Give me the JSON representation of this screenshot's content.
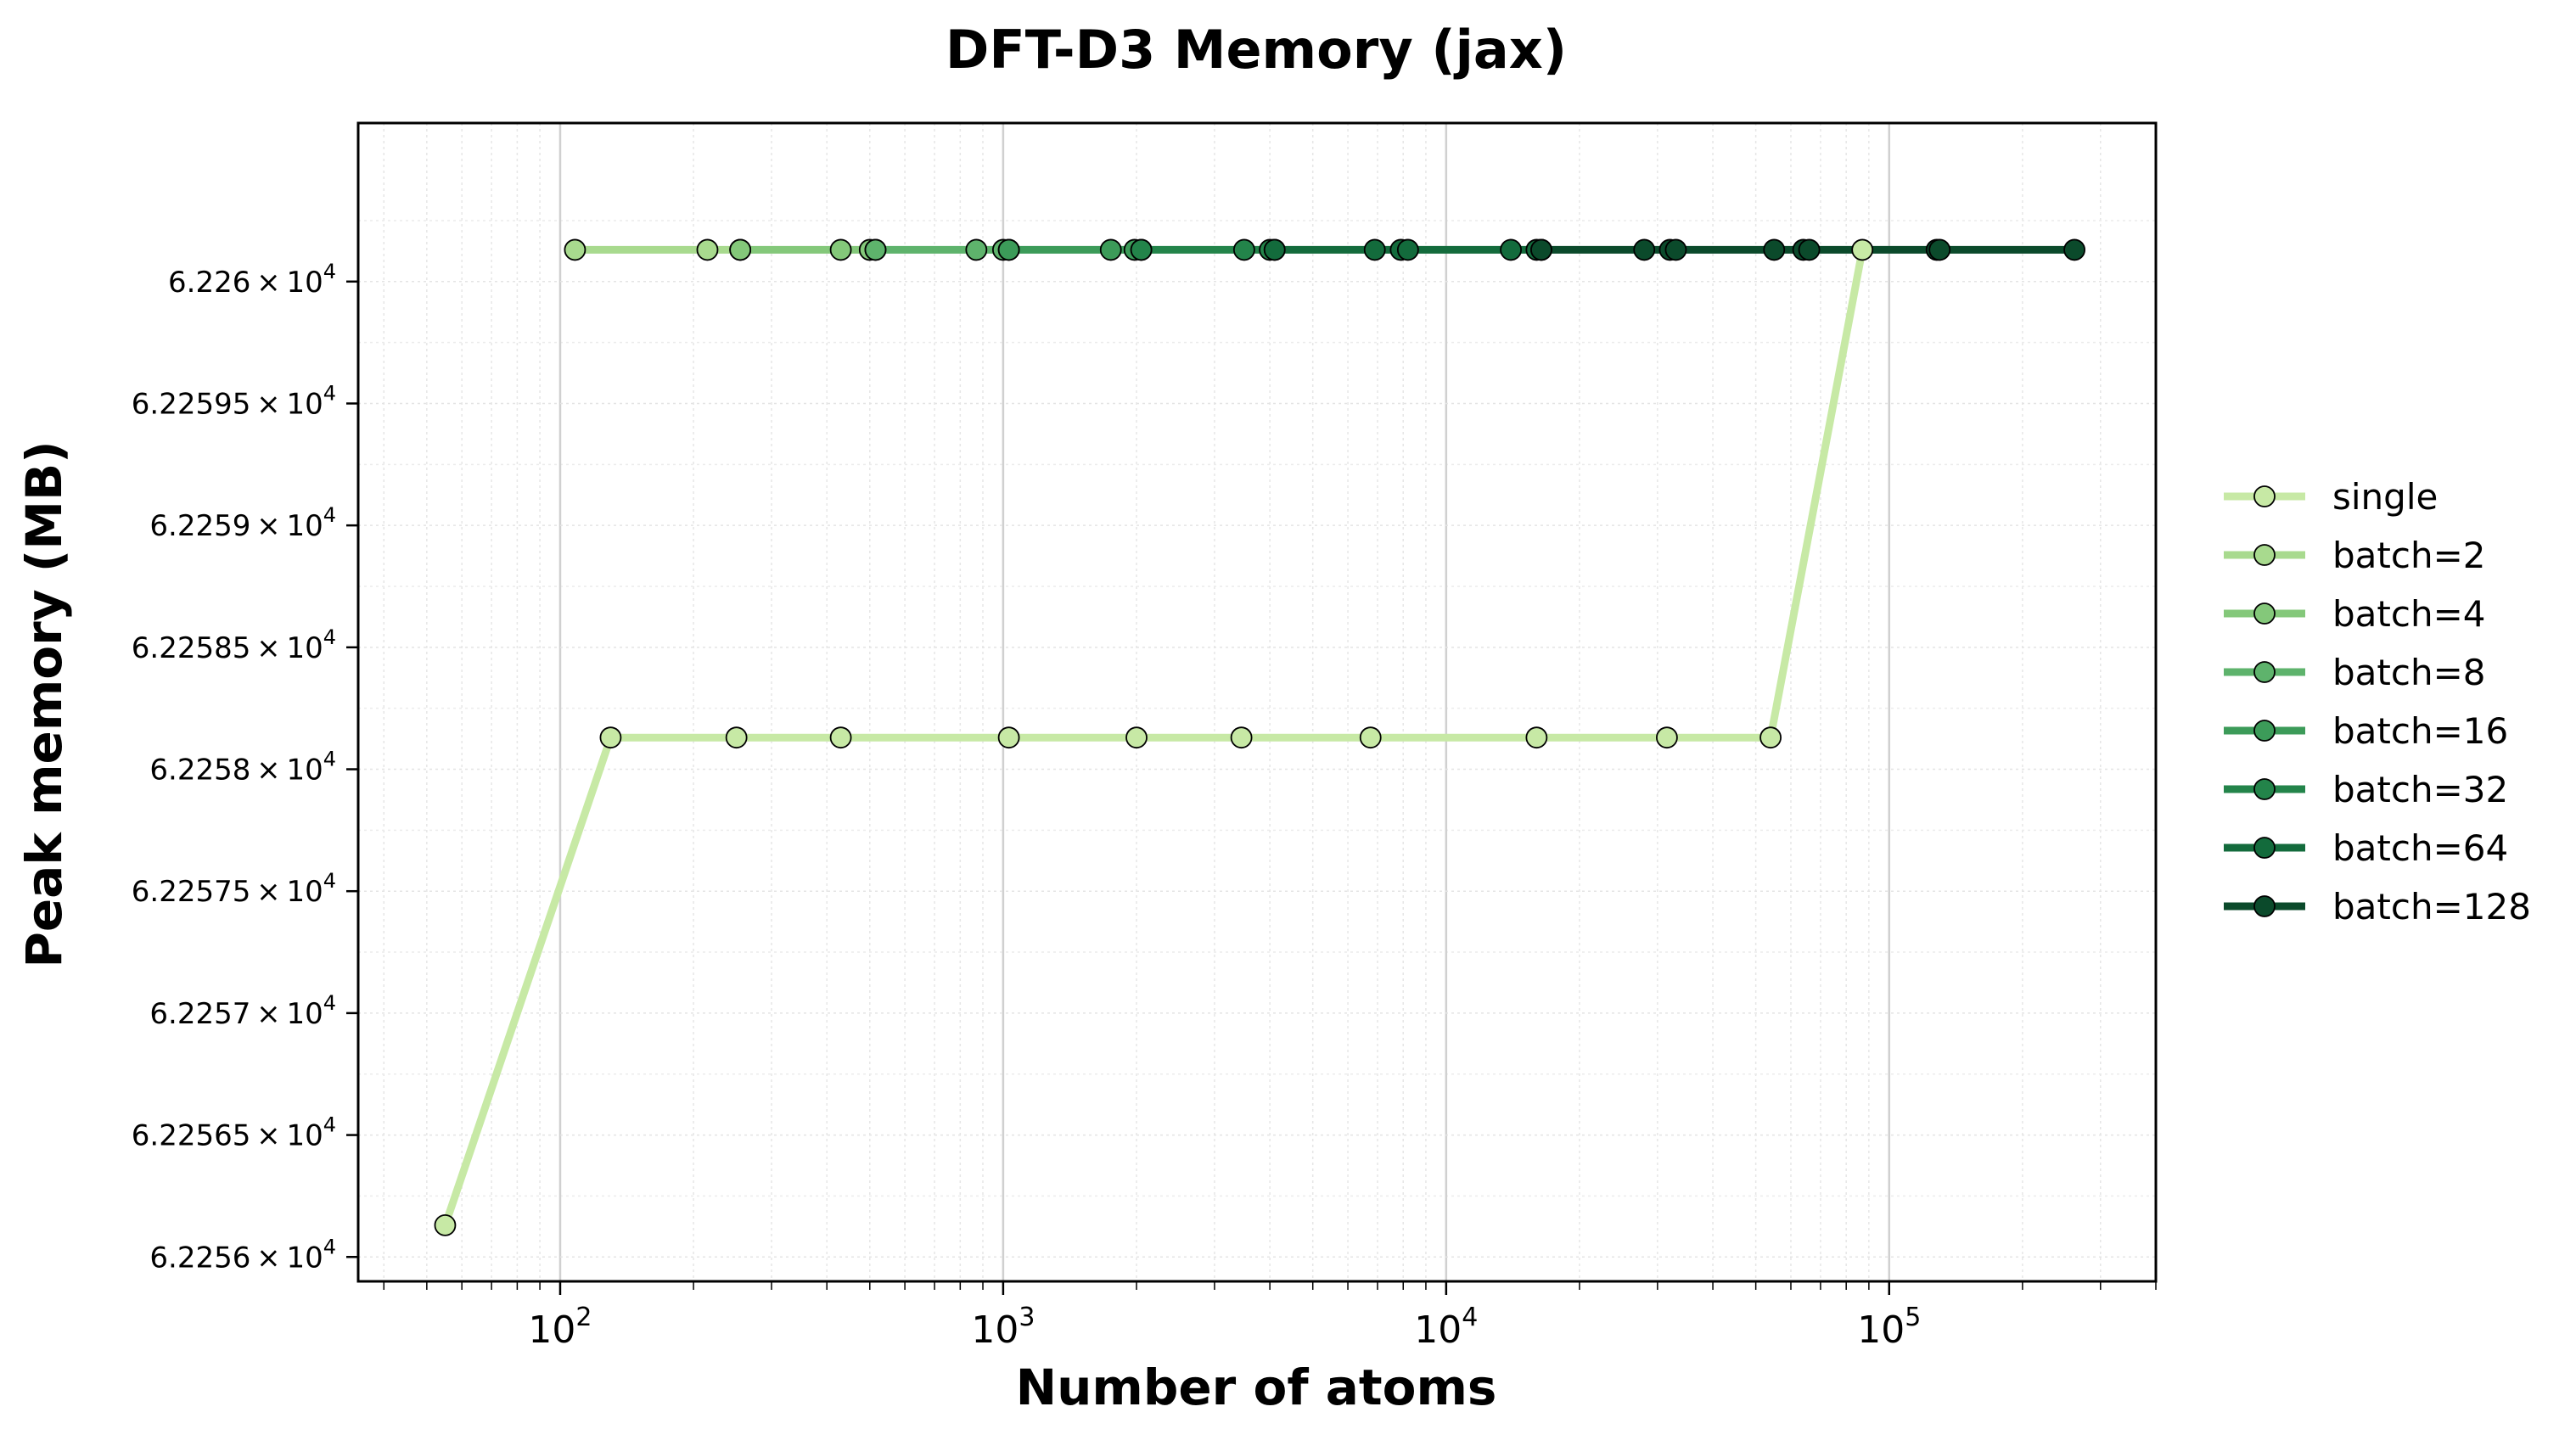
{
  "chart_data": {
    "type": "line",
    "title": "DFT-D3 Memory (jax)",
    "xlabel": "Number of atoms",
    "ylabel": "Peak memory (MB)",
    "xscale": "log",
    "xlim": [
      35,
      400000
    ],
    "ylim": [
      62255.9,
      62260.65
    ],
    "xticks": [
      {
        "value": 100,
        "base": "10",
        "exp": "2"
      },
      {
        "value": 1000,
        "base": "10",
        "exp": "3"
      },
      {
        "value": 10000,
        "base": "10",
        "exp": "4"
      },
      {
        "value": 100000,
        "base": "10",
        "exp": "5"
      }
    ],
    "yticks": [
      {
        "value": 62256.0,
        "mantissa": "6.2256",
        "base": "10",
        "exp": "4"
      },
      {
        "value": 62256.5,
        "mantissa": "6.22565",
        "base": "10",
        "exp": "4"
      },
      {
        "value": 62257.0,
        "mantissa": "6.2257",
        "base": "10",
        "exp": "4"
      },
      {
        "value": 62257.5,
        "mantissa": "6.22575",
        "base": "10",
        "exp": "4"
      },
      {
        "value": 62258.0,
        "mantissa": "6.2258",
        "base": "10",
        "exp": "4"
      },
      {
        "value": 62258.5,
        "mantissa": "6.22585",
        "base": "10",
        "exp": "4"
      },
      {
        "value": 62259.0,
        "mantissa": "6.2259",
        "base": "10",
        "exp": "4"
      },
      {
        "value": 62259.5,
        "mantissa": "6.22595",
        "base": "10",
        "exp": "4"
      },
      {
        "value": 62260.0,
        "mantissa": "6.226",
        "base": "10",
        "exp": "4"
      }
    ],
    "grid": true,
    "legend_position": "right-outside",
    "series": [
      {
        "name": "single",
        "color": "#c7e9a5",
        "x": [
          55,
          130,
          250,
          430,
          1030,
          2000,
          3450,
          6750,
          16000,
          31500,
          54000,
          87000
        ],
        "y": [
          62256.13,
          62258.13,
          62258.13,
          62258.13,
          62258.13,
          62258.13,
          62258.13,
          62258.13,
          62258.13,
          62258.13,
          62258.13,
          62260.13
        ]
      },
      {
        "name": "batch=2",
        "color": "#a8da8e",
        "x": [
          108,
          215,
          255
        ],
        "y": [
          62260.13,
          62260.13,
          62260.13
        ]
      },
      {
        "name": "batch=4",
        "color": "#84c87a",
        "x": [
          255,
          430,
          500,
          515
        ],
        "y": [
          62260.13,
          62260.13,
          62260.13,
          62260.13
        ]
      },
      {
        "name": "batch=8",
        "color": "#5eb36c",
        "x": [
          515,
          870,
          1000,
          1030
        ],
        "y": [
          62260.13,
          62260.13,
          62260.13,
          62260.13
        ]
      },
      {
        "name": "batch=16",
        "color": "#3c9b59",
        "x": [
          1030,
          1750,
          1980,
          2050
        ],
        "y": [
          62260.13,
          62260.13,
          62260.13,
          62260.13
        ]
      },
      {
        "name": "batch=32",
        "color": "#23844a",
        "x": [
          2050,
          3500,
          4000,
          4100
        ],
        "y": [
          62260.13,
          62260.13,
          62260.13,
          62260.13
        ]
      },
      {
        "name": "batch=64",
        "color": "#136b3c",
        "x": [
          4100,
          6900,
          7900,
          8200,
          14000,
          16000,
          16400
        ],
        "y": [
          62260.13,
          62260.13,
          62260.13,
          62260.13,
          62260.13,
          62260.13,
          62260.13
        ]
      },
      {
        "name": "batch=128",
        "color": "#0b4a2b",
        "x": [
          16400,
          28000,
          32000,
          33000,
          55000,
          64000,
          66000,
          128000,
          130000,
          262000
        ],
        "y": [
          62260.13,
          62260.13,
          62260.13,
          62260.13,
          62260.13,
          62260.13,
          62260.13,
          62260.13,
          62260.13,
          62260.13
        ]
      }
    ]
  }
}
